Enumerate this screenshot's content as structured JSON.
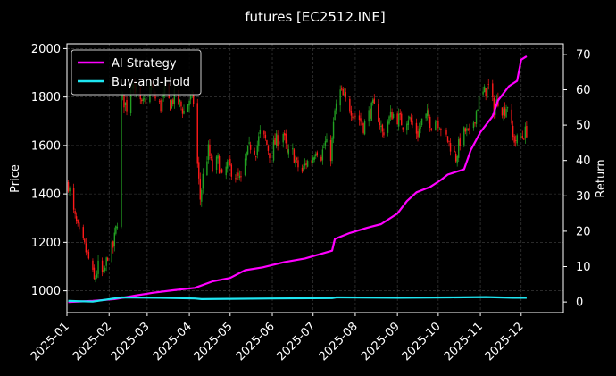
{
  "chart_data": {
    "type": "line",
    "title": "futures [EC2512.INE]",
    "xlabel": "",
    "ylabel_left": "Price",
    "ylabel_right": "Return",
    "x_tick_labels": [
      "2025-01",
      "2025-02",
      "2025-03",
      "2025-04",
      "2025-05",
      "2025-06",
      "2025-07",
      "2025-08",
      "2025-09",
      "2025-10",
      "2025-11",
      "2025-12"
    ],
    "x_range": [
      "2025-01-01",
      "2026-01-01"
    ],
    "y_left_ticks": [
      1000,
      1200,
      1400,
      1600,
      1800,
      2000
    ],
    "y_left_range": [
      910,
      2020
    ],
    "y_right_ticks": [
      0,
      10,
      20,
      30,
      40,
      50,
      60,
      70
    ],
    "y_right_range": [
      -3,
      73
    ],
    "grid": true,
    "legend_position": "top-left",
    "series": [
      {
        "name": "Price (candlestick)",
        "axis": "left",
        "style": "candlestick",
        "up_color": "#22a022",
        "down_color": "#ff1a1a",
        "close": [
          [
            "2025-01-02",
            1440
          ],
          [
            "2025-01-06",
            1320
          ],
          [
            "2025-01-10",
            1230
          ],
          [
            "2025-01-14",
            1180
          ],
          [
            "2025-01-17",
            1130
          ],
          [
            "2025-01-21",
            1040
          ],
          [
            "2025-01-24",
            1100
          ],
          [
            "2025-01-28",
            1060
          ],
          [
            "2025-01-31",
            1150
          ],
          [
            "2025-02-04",
            1180
          ],
          [
            "2025-02-07",
            1290
          ],
          [
            "2025-02-10",
            1800
          ],
          [
            "2025-02-14",
            1760
          ],
          [
            "2025-02-18",
            1870
          ],
          [
            "2025-02-21",
            1820
          ],
          [
            "2025-02-25",
            1760
          ],
          [
            "2025-02-28",
            1790
          ],
          [
            "2025-03-04",
            1840
          ],
          [
            "2025-03-07",
            1790
          ],
          [
            "2025-03-11",
            1760
          ],
          [
            "2025-03-14",
            1820
          ],
          [
            "2025-03-18",
            1770
          ],
          [
            "2025-03-21",
            1800
          ],
          [
            "2025-03-25",
            1770
          ],
          [
            "2025-03-28",
            1740
          ],
          [
            "2025-04-01",
            1790
          ],
          [
            "2025-04-04",
            1780
          ],
          [
            "2025-04-07",
            1520
          ],
          [
            "2025-04-09",
            1380
          ],
          [
            "2025-04-11",
            1470
          ],
          [
            "2025-04-15",
            1580
          ],
          [
            "2025-04-18",
            1500
          ],
          [
            "2025-04-22",
            1540
          ],
          [
            "2025-04-25",
            1460
          ],
          [
            "2025-04-29",
            1520
          ],
          [
            "2025-05-06",
            1470
          ],
          [
            "2025-05-09",
            1450
          ],
          [
            "2025-05-13",
            1560
          ],
          [
            "2025-05-16",
            1600
          ],
          [
            "2025-05-20",
            1580
          ],
          [
            "2025-05-23",
            1650
          ],
          [
            "2025-05-27",
            1620
          ],
          [
            "2025-05-30",
            1570
          ],
          [
            "2025-06-04",
            1620
          ],
          [
            "2025-06-09",
            1650
          ],
          [
            "2025-06-12",
            1560
          ],
          [
            "2025-06-16",
            1570
          ],
          [
            "2025-06-19",
            1520
          ],
          [
            "2025-06-23",
            1490
          ],
          [
            "2025-06-26",
            1530
          ],
          [
            "2025-06-30",
            1540
          ],
          [
            "2025-07-03",
            1590
          ],
          [
            "2025-07-07",
            1560
          ],
          [
            "2025-07-10",
            1610
          ],
          [
            "2025-07-14",
            1560
          ],
          [
            "2025-07-17",
            1740
          ],
          [
            "2025-07-21",
            1820
          ],
          [
            "2025-07-24",
            1790
          ],
          [
            "2025-07-28",
            1760
          ],
          [
            "2025-07-31",
            1730
          ],
          [
            "2025-08-04",
            1710
          ],
          [
            "2025-08-07",
            1680
          ],
          [
            "2025-08-11",
            1730
          ],
          [
            "2025-08-14",
            1760
          ],
          [
            "2025-08-18",
            1720
          ],
          [
            "2025-08-21",
            1650
          ],
          [
            "2025-08-25",
            1700
          ],
          [
            "2025-08-28",
            1730
          ],
          [
            "2025-09-02",
            1710
          ],
          [
            "2025-09-05",
            1690
          ],
          [
            "2025-09-09",
            1720
          ],
          [
            "2025-09-12",
            1680
          ],
          [
            "2025-09-16",
            1650
          ],
          [
            "2025-09-19",
            1700
          ],
          [
            "2025-09-23",
            1720
          ],
          [
            "2025-09-26",
            1690
          ],
          [
            "2025-09-30",
            1710
          ],
          [
            "2025-10-10",
            1600
          ],
          [
            "2025-10-14",
            1550
          ],
          [
            "2025-10-17",
            1620
          ],
          [
            "2025-10-21",
            1660
          ],
          [
            "2025-10-24",
            1640
          ],
          [
            "2025-10-28",
            1720
          ],
          [
            "2025-10-31",
            1790
          ],
          [
            "2025-11-04",
            1820
          ],
          [
            "2025-11-07",
            1840
          ],
          [
            "2025-11-11",
            1750
          ],
          [
            "2025-11-14",
            1790
          ],
          [
            "2025-11-18",
            1740
          ],
          [
            "2025-11-21",
            1770
          ],
          [
            "2025-11-25",
            1630
          ],
          [
            "2025-11-28",
            1620
          ],
          [
            "2025-12-02",
            1640
          ],
          [
            "2025-12-05",
            1660
          ]
        ]
      },
      {
        "name": "AI Strategy",
        "axis": "right",
        "color": "#ff00ff",
        "points": [
          [
            "2025-01-02",
            0
          ],
          [
            "2025-01-20",
            0.3
          ],
          [
            "2025-02-05",
            0.8
          ],
          [
            "2025-02-20",
            1.8
          ],
          [
            "2025-03-05",
            2.6
          ],
          [
            "2025-03-20",
            3.3
          ],
          [
            "2025-04-05",
            4.0
          ],
          [
            "2025-04-18",
            5.8
          ],
          [
            "2025-05-01",
            6.8
          ],
          [
            "2025-05-12",
            9.0
          ],
          [
            "2025-05-25",
            9.8
          ],
          [
            "2025-06-10",
            11.3
          ],
          [
            "2025-06-25",
            12.3
          ],
          [
            "2025-07-15",
            14.5
          ],
          [
            "2025-07-17",
            17.8
          ],
          [
            "2025-07-28",
            19.5
          ],
          [
            "2025-08-10",
            21.0
          ],
          [
            "2025-08-20",
            22.0
          ],
          [
            "2025-09-01",
            25.0
          ],
          [
            "2025-09-08",
            28.5
          ],
          [
            "2025-09-15",
            31.0
          ],
          [
            "2025-09-25",
            32.5
          ],
          [
            "2025-10-03",
            34.5
          ],
          [
            "2025-10-08",
            36.0
          ],
          [
            "2025-10-20",
            37.5
          ],
          [
            "2025-10-25",
            43.0
          ],
          [
            "2025-11-01",
            48.0
          ],
          [
            "2025-11-10",
            52.5
          ],
          [
            "2025-11-14",
            57.0
          ],
          [
            "2025-11-22",
            61.0
          ],
          [
            "2025-11-28",
            62.5
          ],
          [
            "2025-12-01",
            68.5
          ],
          [
            "2025-12-05",
            69.5
          ]
        ]
      },
      {
        "name": "Buy-and-Hold",
        "axis": "right",
        "color": "#1ee6f2",
        "points": [
          [
            "2025-01-02",
            0.3
          ],
          [
            "2025-01-20",
            0.1
          ],
          [
            "2025-02-10",
            1.3
          ],
          [
            "2025-03-10",
            1.2
          ],
          [
            "2025-04-05",
            1.0
          ],
          [
            "2025-04-10",
            0.8
          ],
          [
            "2025-05-01",
            0.9
          ],
          [
            "2025-06-01",
            1.0
          ],
          [
            "2025-07-15",
            1.1
          ],
          [
            "2025-07-18",
            1.3
          ],
          [
            "2025-09-01",
            1.2
          ],
          [
            "2025-10-10",
            1.3
          ],
          [
            "2025-11-05",
            1.4
          ],
          [
            "2025-11-25",
            1.2
          ],
          [
            "2025-12-05",
            1.2
          ]
        ]
      }
    ]
  }
}
